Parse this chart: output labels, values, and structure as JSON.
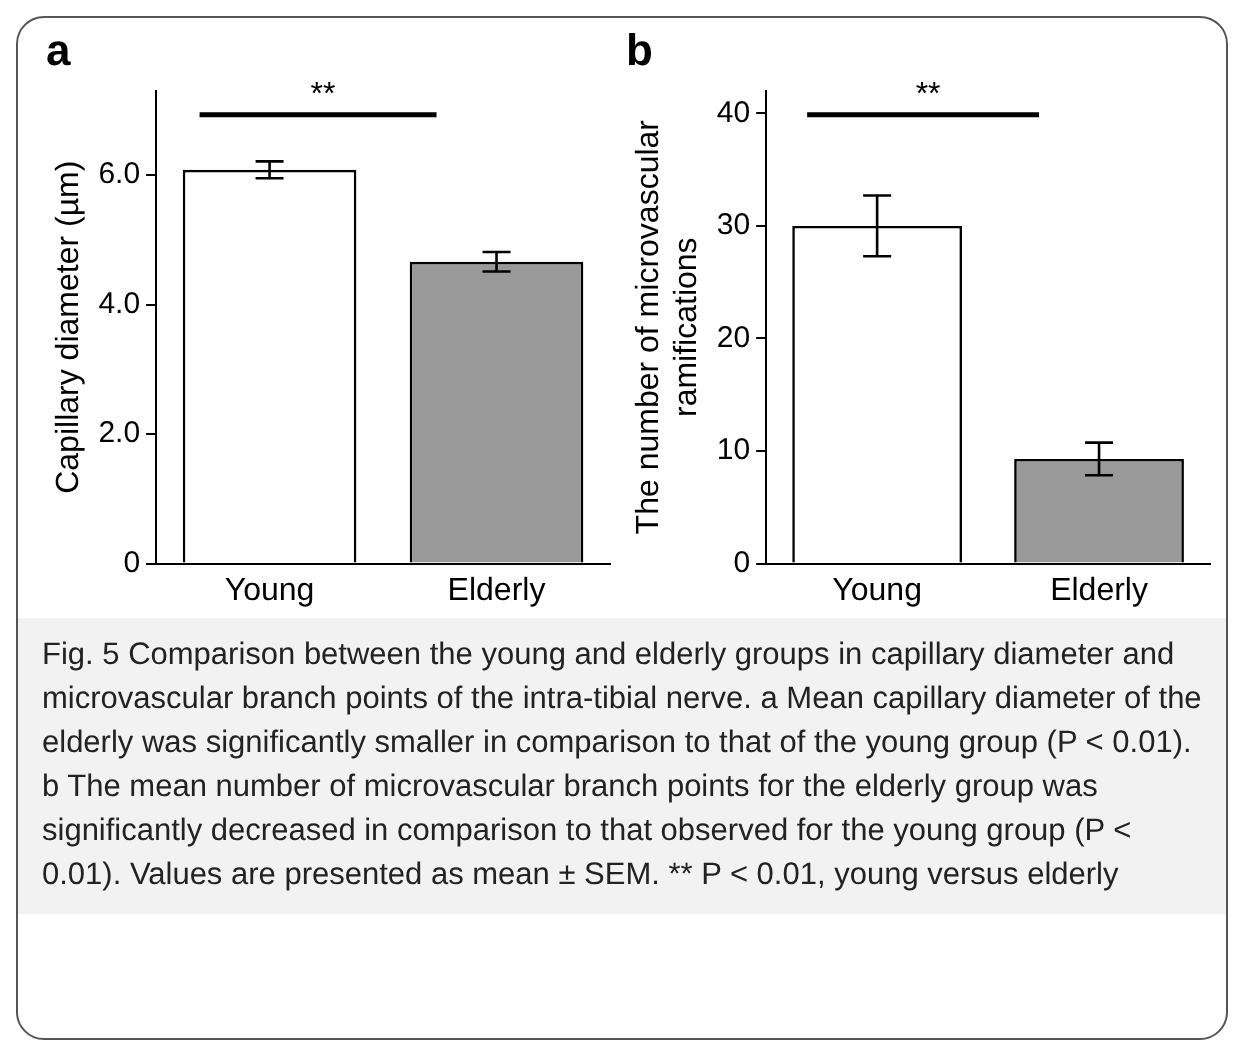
{
  "chart_data": [
    {
      "type": "bar",
      "title": "a",
      "ylabel": "Capillary diameter (µm)",
      "categories": [
        "Young",
        "Elderly"
      ],
      "values": [
        6.08,
        4.66
      ],
      "colors": [
        "#ffffff",
        "#999999"
      ],
      "errors": [
        0.13,
        0.15
      ],
      "ylim": [
        0,
        7.3
      ],
      "yticks": [
        0,
        {
          "value": 2,
          "label": "2.0"
        },
        {
          "value": 4,
          "label": "4.0"
        },
        {
          "value": 6,
          "label": "6.0"
        }
      ],
      "grid": false,
      "legend": false,
      "annotations": [
        "**",
        "Fig. 5  Comparison between the young and elderly groups in capillary diameter and microvascular branch points of the intra-tibial nerve. a Mean capillary diameter of the elderly was significantly smaller in comparison to that of the young group (P < 0.01). b The mean number of microvascular branch points for the elderly group was significantly decreased in comparison to that observed for the young group (P < 0.01). Values are presented as mean ± SEM. ** P < 0.01, young versus elderly"
      ]
    },
    {
      "type": "bar",
      "title": "b",
      "ylabel": "The number of microvascular ramifications",
      "categories": [
        "Young",
        "Elderly"
      ],
      "values": [
        30.0,
        9.3
      ],
      "colors": [
        "#ffffff",
        "#999999"
      ],
      "errors": [
        2.7,
        1.45
      ],
      "ylim": [
        0,
        42
      ],
      "yticks": [
        0,
        10,
        20,
        30,
        40
      ],
      "grid": false,
      "legend": false,
      "annotations": [
        "**"
      ]
    }
  ]
}
